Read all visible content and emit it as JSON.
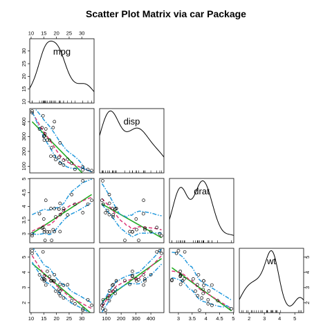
{
  "chart_data": {
    "type": "scatter",
    "title": "Scatter Plot Matrix via car Package",
    "layout": "lower-triangle",
    "variables": [
      {
        "name": "mpg",
        "range": [
          10.4,
          33.9
        ],
        "ticks": [
          10,
          15,
          20,
          25,
          30
        ]
      },
      {
        "name": "disp",
        "range": [
          71.1,
          472
        ],
        "ticks": [
          100,
          200,
          300,
          400
        ]
      },
      {
        "name": "drat",
        "range": [
          2.76,
          4.93
        ],
        "ticks": [
          3.0,
          3.5,
          4.0,
          4.5,
          5.0
        ]
      },
      {
        "name": "wt",
        "range": [
          1.513,
          5.424
        ],
        "ticks": [
          2,
          3,
          4,
          5
        ]
      }
    ],
    "diagonal": "density",
    "fit_lines": {
      "linear": "#22aa22",
      "smooth": "#dd3377",
      "spread": "#2299dd"
    },
    "points": [
      [
        21.0,
        160.0,
        3.9,
        2.62
      ],
      [
        21.0,
        160.0,
        3.9,
        2.875
      ],
      [
        22.8,
        108.0,
        3.85,
        2.32
      ],
      [
        21.4,
        258.0,
        3.08,
        3.215
      ],
      [
        18.7,
        360.0,
        3.15,
        3.44
      ],
      [
        18.1,
        225.0,
        2.76,
        3.46
      ],
      [
        14.3,
        360.0,
        3.21,
        3.57
      ],
      [
        24.4,
        146.7,
        3.69,
        3.19
      ],
      [
        22.8,
        140.8,
        3.92,
        3.15
      ],
      [
        19.2,
        167.6,
        3.92,
        3.44
      ],
      [
        17.8,
        167.6,
        3.92,
        3.44
      ],
      [
        16.4,
        275.8,
        3.07,
        4.07
      ],
      [
        17.3,
        275.8,
        3.07,
        3.73
      ],
      [
        15.2,
        275.8,
        3.07,
        3.78
      ],
      [
        10.4,
        472.0,
        2.93,
        5.25
      ],
      [
        10.4,
        460.0,
        3.0,
        5.424
      ],
      [
        14.7,
        440.0,
        3.23,
        5.345
      ],
      [
        32.4,
        78.7,
        4.08,
        2.2
      ],
      [
        30.4,
        75.7,
        4.93,
        1.615
      ],
      [
        33.9,
        71.1,
        4.22,
        1.835
      ],
      [
        21.5,
        120.1,
        3.7,
        2.465
      ],
      [
        15.5,
        318.0,
        2.76,
        3.52
      ],
      [
        15.2,
        304.0,
        3.15,
        3.435
      ],
      [
        13.3,
        350.0,
        3.73,
        3.84
      ],
      [
        19.2,
        400.0,
        3.08,
        3.845
      ],
      [
        27.3,
        79.0,
        4.08,
        1.935
      ],
      [
        26.0,
        120.3,
        4.43,
        2.14
      ],
      [
        30.4,
        95.1,
        3.77,
        1.513
      ],
      [
        15.8,
        351.0,
        4.22,
        3.17
      ],
      [
        19.7,
        145.0,
        3.62,
        2.77
      ],
      [
        15.0,
        301.0,
        3.54,
        3.57
      ],
      [
        21.4,
        121.0,
        4.11,
        2.78
      ]
    ]
  }
}
